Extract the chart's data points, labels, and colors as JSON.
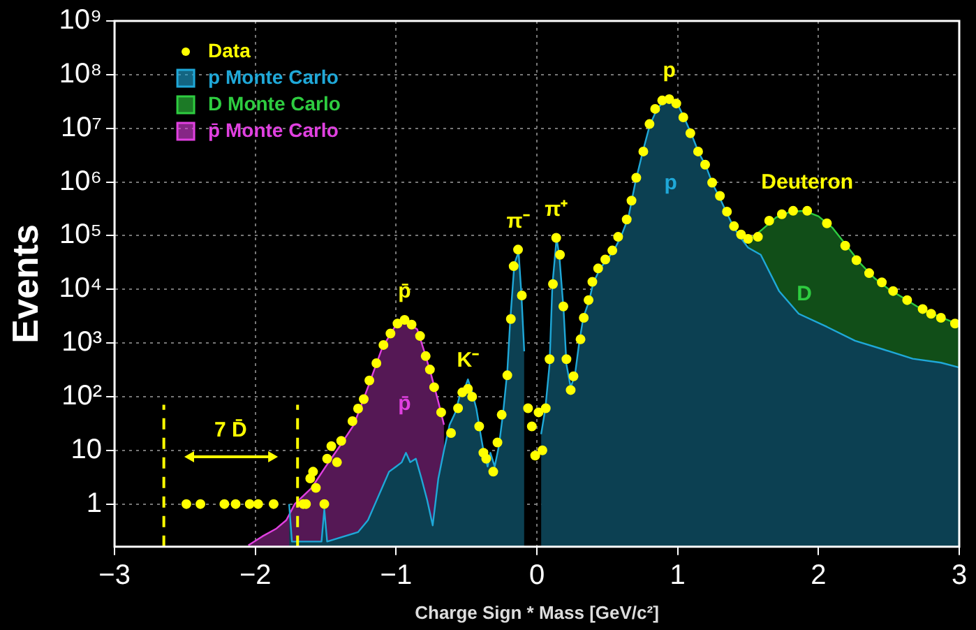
{
  "chart_data": {
    "type": "scatter",
    "xlabel": "Charge Sign * Mass [GeV/c²]",
    "ylabel": "Events",
    "xlim": [
      -3,
      3
    ],
    "ylim": [
      0.16,
      1000000000
    ],
    "xticks": [
      {
        "value": -3,
        "label": "−3"
      },
      {
        "value": -2,
        "label": "−2"
      },
      {
        "value": -1,
        "label": "−1"
      },
      0,
      1,
      2,
      3
    ],
    "yticks": [
      1,
      10,
      {
        "value": 100,
        "label": "10²"
      },
      {
        "value": 1000,
        "label": "10³"
      },
      {
        "value": 10000,
        "label": "10⁴"
      },
      {
        "value": 100000,
        "label": "10⁵"
      },
      {
        "value": 1000000,
        "label": "10⁶"
      },
      {
        "value": 10000000,
        "label": "10⁷"
      },
      {
        "value": 100000000,
        "label": "10⁸"
      },
      {
        "value": 1000000000,
        "label": "10⁹"
      }
    ],
    "log": "y",
    "grid": true,
    "legend": "top left",
    "series": [
      {
        "name": "Data",
        "color": "#ffff00",
        "marker": "circle",
        "x": [
          -2.49,
          -2.39,
          -2.22,
          -2.14,
          -2.04,
          -1.98,
          -1.87,
          -1.66,
          -1.64,
          -1.61,
          -1.59,
          -1.57,
          -1.51,
          -1.49,
          -1.46,
          -1.42,
          -1.39,
          -1.31,
          -1.27,
          -1.23,
          -1.19,
          -1.14,
          -1.09,
          -1.04,
          -0.99,
          -0.94,
          -0.89,
          -0.83,
          -0.79,
          -0.76,
          -0.73,
          -0.68,
          -0.61,
          -0.56,
          -0.53,
          -0.49,
          -0.46,
          -0.41,
          -0.38,
          -0.36,
          -0.31,
          -0.28,
          -0.25,
          -0.21,
          -0.185,
          -0.165,
          -0.134,
          -0.107,
          -0.063,
          -0.036,
          -0.012,
          0.012,
          0.039,
          0.063,
          0.09,
          0.114,
          0.137,
          0.164,
          0.188,
          0.21,
          0.24,
          0.26,
          0.31,
          0.333,
          0.367,
          0.394,
          0.435,
          0.486,
          0.536,
          0.577,
          0.638,
          0.672,
          0.706,
          0.756,
          0.8,
          0.84,
          0.89,
          0.94,
          0.99,
          1.04,
          1.09,
          1.145,
          1.195,
          1.245,
          1.3,
          1.35,
          1.4,
          1.45,
          1.5,
          1.57,
          1.65,
          1.74,
          1.82,
          1.92,
          2.06,
          2.19,
          2.27,
          2.36,
          2.45,
          2.53,
          2.63,
          2.74,
          2.8,
          2.87,
          2.97
        ],
        "values": [
          1,
          1,
          1,
          1,
          1,
          1,
          1,
          1,
          1,
          3,
          4,
          2,
          1,
          7,
          12,
          6,
          15,
          35,
          60,
          90,
          200,
          420,
          920,
          1500,
          2300,
          2700,
          2200,
          1350,
          570,
          320,
          150,
          51,
          21,
          61,
          120,
          140,
          100,
          28,
          9,
          7,
          4,
          14,
          46,
          250,
          2800,
          27000,
          55000,
          7700,
          61,
          28,
          8,
          51,
          10,
          61,
          500,
          12500,
          91000,
          44000,
          4800,
          500,
          133,
          240,
          1170,
          2950,
          6300,
          13800,
          24500,
          36000,
          53000,
          95000,
          200000,
          450000,
          1200000,
          3700000,
          12000000,
          23000000,
          33000000,
          35000000,
          29000000,
          16000000,
          8100000,
          3700000,
          2100000,
          970000,
          550000,
          280000,
          150000,
          105000,
          87000,
          95000,
          190000,
          250000,
          290000,
          290000,
          170000,
          65000,
          35000,
          20000,
          13500,
          9300,
          6300,
          4300,
          3500,
          2950,
          2300
        ]
      },
      {
        "name": "p Monte Carlo",
        "type": "area",
        "color": "#1fa8d8",
        "x": [
          -1.76,
          -1.74,
          -1.53,
          -1.51,
          -1.49,
          -1.27,
          -1.2,
          -1.15,
          -1.1,
          -1.05,
          -1.0,
          -0.96,
          -0.93,
          -0.9,
          -0.86,
          -0.82,
          -0.78,
          -0.74,
          -0.7,
          -0.66,
          -0.62,
          -0.58,
          -0.55,
          -0.51,
          -0.49,
          -0.46,
          -0.43,
          -0.4,
          -0.38,
          -0.35,
          -0.33,
          -0.3,
          -0.27,
          -0.24,
          -0.21,
          -0.19,
          -0.16,
          -0.13,
          -0.11,
          -0.09,
          -0.07,
          0.03,
          0.06,
          0.09,
          0.11,
          0.14,
          0.16,
          0.19,
          0.21,
          0.24,
          0.27,
          0.3,
          0.33,
          0.37,
          0.4,
          0.45,
          0.5,
          0.55,
          0.6,
          0.65,
          0.7,
          0.75,
          0.8,
          0.85,
          0.9,
          0.95,
          1.0,
          1.05,
          1.1,
          1.15,
          1.2,
          1.25,
          1.3,
          1.35,
          1.4,
          1.45,
          1.5,
          1.59,
          1.72,
          1.86,
          2.06,
          2.26,
          2.46,
          2.67,
          2.87,
          3.0
        ],
        "values": [
          1,
          0.2,
          0.2,
          0.8,
          0.2,
          0.3,
          0.5,
          1,
          2,
          4,
          5,
          6,
          9,
          6,
          7,
          3,
          1.2,
          0.4,
          3,
          10,
          30,
          50,
          100,
          150,
          210,
          120,
          60,
          20,
          10,
          5,
          9,
          5,
          12,
          50,
          300,
          2500,
          30000,
          50000,
          8000,
          700,
          null,
          20,
          60,
          400,
          12000,
          90000,
          40000,
          4000,
          400,
          150,
          250,
          1000,
          3000,
          6000,
          13000,
          25000,
          36000,
          55000,
          100000,
          220000,
          1000000,
          3500000,
          11000000,
          22000000,
          32000000,
          34000000,
          28000000,
          15000000,
          7500000,
          3500000,
          2000000,
          900000,
          500000,
          260000,
          140000,
          90000,
          60000,
          44000,
          9300,
          3500,
          2000,
          1100,
          760,
          510,
          430,
          350
        ]
      },
      {
        "name": "D Monte Carlo",
        "type": "area",
        "color": "#2ecc40",
        "x": [
          1.5,
          1.6,
          1.7,
          1.8,
          1.9,
          2.0,
          2.1,
          2.2,
          2.3,
          2.4,
          2.5,
          2.6,
          2.7,
          2.8,
          2.9,
          3.0
        ],
        "values": [
          80000,
          130000,
          220000,
          280000,
          290000,
          230000,
          140000,
          65000,
          30000,
          16000,
          10000,
          7000,
          4800,
          3600,
          2800,
          2200
        ]
      },
      {
        "name": "p̄ Monte Carlo",
        "type": "area",
        "color": "#e040e0",
        "x": [
          -2.05,
          -1.95,
          -1.85,
          -1.78,
          -1.72,
          -1.65,
          -1.6,
          -1.5,
          -1.4,
          -1.3,
          -1.2,
          -1.1,
          -1.0,
          -0.94,
          -0.85,
          -0.8,
          -0.75,
          -0.7,
          -0.66
        ],
        "values": [
          0.17,
          0.25,
          0.35,
          0.5,
          1,
          1.5,
          2,
          5,
          12,
          30,
          150,
          800,
          2200,
          2600,
          1800,
          700,
          250,
          80,
          30
        ]
      }
    ],
    "ref_lines": [
      {
        "axis": "x",
        "value": -2.65,
        "color": "#ffff00",
        "line_style": "dashed"
      },
      {
        "axis": "x",
        "value": -1.7,
        "color": "#ffff00",
        "line_style": "dashed"
      }
    ],
    "annotations": [
      {
        "text": "p",
        "x": 0.94,
        "y": 35000000
      },
      {
        "text": "Deuteron",
        "x": 1.92,
        "y": 290000
      },
      {
        "text": "π⁺",
        "x": 0.137,
        "y": 91000
      },
      {
        "text": "π⁻",
        "x": -0.134,
        "y": 55000
      },
      {
        "text": "K⁻",
        "x": -0.49,
        "y": 140
      },
      {
        "text": "p̄",
        "x": -0.94,
        "y": 2700
      },
      "p",
      "D",
      "p̄",
      "7 D̄"
    ]
  }
}
